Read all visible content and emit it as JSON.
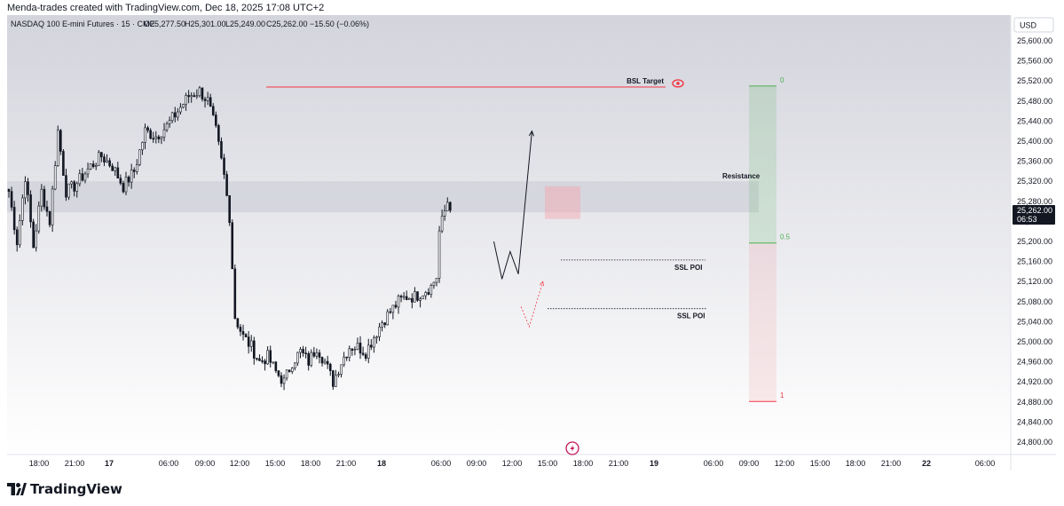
{
  "credit": "Menda-trades created with TradingView.com, Dec 18, 2025 17:08 UTC+2",
  "brand": {
    "logo_text": "TradingView",
    "logo_icon": "tradingview-logo-icon",
    "accent": "#131722"
  },
  "chart_data": {
    "type": "candlestick",
    "title": "NASDAQ 100 E-mini Futures · 15 · CME",
    "ohlc": {
      "open": "O25,277.50",
      "high": "H25,301.00",
      "low": "L25,249.00",
      "close": "C25,262.00",
      "change": "−15.50 (−0.06%)"
    },
    "currency": "USD",
    "ylim": [
      24780,
      25640
    ],
    "y_ticks": [
      "25,600.00",
      "25,560.00",
      "25,520.00",
      "25,480.00",
      "25,440.00",
      "25,400.00",
      "25,360.00",
      "25,320.00",
      "25,280.00",
      "25,240.00",
      "25,200.00",
      "25,160.00",
      "25,120.00",
      "25,080.00",
      "25,040.00",
      "25,000.00",
      "24,960.00",
      "24,920.00",
      "24,880.00",
      "24,840.00",
      "24,800.00"
    ],
    "x_ticks": [
      "18:00",
      "21:00",
      "17",
      "06:00",
      "09:00",
      "12:00",
      "15:00",
      "18:00",
      "21:00",
      "18",
      "06:00",
      "09:00",
      "12:00",
      "15:00",
      "18:00",
      "21:00",
      "19",
      "06:00",
      "09:00",
      "12:00",
      "15:00",
      "18:00",
      "21:00",
      "22",
      "06:00"
    ],
    "last_price": {
      "value": 25262,
      "label": "25,262.00",
      "countdown": "06:53"
    },
    "price_path": [
      [
        0,
        25300
      ],
      [
        3,
        25200
      ],
      [
        6,
        25330
      ],
      [
        9,
        25190
      ],
      [
        12,
        25300
      ],
      [
        15,
        25240
      ],
      [
        18,
        25420
      ],
      [
        21,
        25300
      ],
      [
        24,
        25310
      ],
      [
        27,
        25330
      ],
      [
        30,
        25350
      ],
      [
        34,
        25370
      ],
      [
        38,
        25350
      ],
      [
        42,
        25310
      ],
      [
        46,
        25340
      ],
      [
        50,
        25420
      ],
      [
        54,
        25410
      ],
      [
        58,
        25430
      ],
      [
        62,
        25460
      ],
      [
        66,
        25490
      ],
      [
        70,
        25500
      ],
      [
        73,
        25480
      ],
      [
        76,
        25420
      ],
      [
        79,
        25330
      ],
      [
        81,
        25250
      ],
      [
        83,
        25050
      ],
      [
        86,
        25010
      ],
      [
        89,
        24990
      ],
      [
        92,
        24960
      ],
      [
        95,
        24970
      ],
      [
        98,
        24940
      ],
      [
        101,
        24920
      ],
      [
        104,
        24960
      ],
      [
        107,
        24980
      ],
      [
        110,
        24960
      ],
      [
        113,
        24990
      ],
      [
        116,
        24960
      ],
      [
        119,
        24920
      ],
      [
        122,
        24960
      ],
      [
        125,
        24990
      ],
      [
        128,
        24990
      ],
      [
        131,
        24980
      ],
      [
        134,
        25010
      ],
      [
        137,
        25040
      ],
      [
        140,
        25060
      ],
      [
        143,
        25080
      ],
      [
        146,
        25090
      ],
      [
        149,
        25090
      ],
      [
        152,
        25100
      ],
      [
        155,
        25110
      ],
      [
        157,
        25130
      ],
      [
        158,
        25220
      ],
      [
        161,
        25280
      ],
      [
        162,
        25250
      ]
    ],
    "annotations": [
      {
        "label": "BSL Target",
        "price": 25508,
        "color": "#f23645"
      },
      {
        "label": "Resistance",
        "top": 25320,
        "bottom": 25258
      },
      {
        "label": "SSL POI",
        "price": 25163
      },
      {
        "label": "SSL POI",
        "price": 25066
      }
    ],
    "fib": {
      "levels": [
        "0",
        "0.5",
        "1"
      ],
      "prices": [
        25510,
        25197,
        24881
      ],
      "colors": [
        "#4caf50",
        "#4caf50",
        "#f23645"
      ]
    },
    "projection": {
      "main": [
        [
          178,
          25200
        ],
        [
          181,
          25125
        ],
        [
          184,
          25180
        ],
        [
          187,
          25135
        ],
        [
          192,
          25420
        ]
      ],
      "dotted": [
        [
          188,
          25070
        ],
        [
          191,
          25030
        ],
        [
          196,
          25120
        ]
      ]
    },
    "markers": {
      "eye_icon": "eye-icon",
      "lightning_icon": "lightning-icon"
    }
  }
}
